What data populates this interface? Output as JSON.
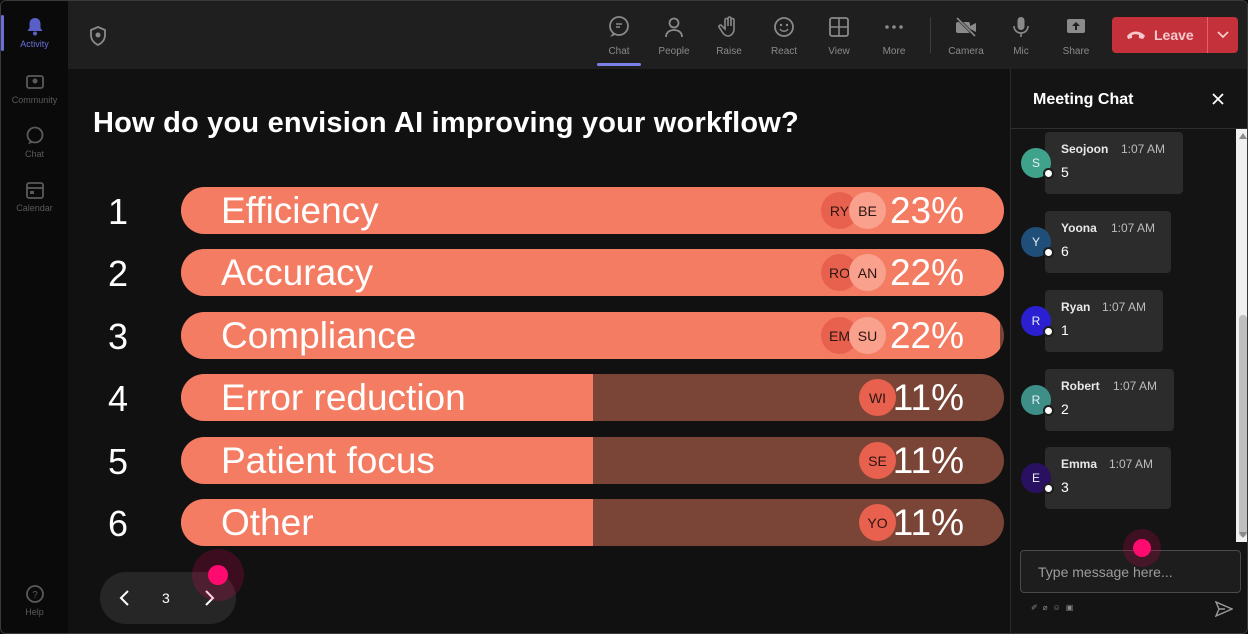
{
  "rail": {
    "items": [
      {
        "label": "Activity",
        "icon": "bell-icon",
        "active": true
      },
      {
        "label": "Community",
        "icon": "community-icon",
        "active": false
      },
      {
        "label": "Chat",
        "icon": "chat-icon",
        "active": false
      },
      {
        "label": "Calendar",
        "icon": "calendar-icon",
        "active": false
      }
    ],
    "help_label": "Help"
  },
  "toolbar": {
    "buttons": [
      {
        "label": "Chat",
        "icon": "chat-icon",
        "active": true
      },
      {
        "label": "People",
        "icon": "people-icon"
      },
      {
        "label": "Raise",
        "icon": "raise-hand-icon"
      },
      {
        "label": "React",
        "icon": "react-icon"
      },
      {
        "label": "View",
        "icon": "view-icon"
      },
      {
        "label": "More",
        "icon": "more-icon"
      },
      {
        "label": "Camera",
        "icon": "camera-off-icon"
      },
      {
        "label": "Mic",
        "icon": "mic-icon"
      },
      {
        "label": "Share",
        "icon": "share-icon"
      }
    ],
    "leave_label": "Leave",
    "leave_color": "#c4313b"
  },
  "poll": {
    "question": "How do you envision AI improving your workflow?",
    "bar_color": "#f47c63",
    "track_color": "#7a4536",
    "options": [
      {
        "num": "1",
        "label": "Efficiency",
        "percent_label": "23%",
        "fill_fraction": 1.0,
        "avatars": [
          "RY",
          "BE"
        ]
      },
      {
        "num": "2",
        "label": "Accuracy",
        "percent_label": "22%",
        "fill_fraction": 1.0,
        "avatars": [
          "RO",
          "AN"
        ]
      },
      {
        "num": "3",
        "label": "Compliance",
        "percent_label": "22%",
        "fill_fraction": 0.995,
        "avatars": [
          "EM",
          "SU"
        ]
      },
      {
        "num": "4",
        "label": "Error reduction",
        "percent_label": "11%",
        "fill_fraction": 0.5,
        "avatars": [
          "WI"
        ]
      },
      {
        "num": "5",
        "label": "Patient focus",
        "percent_label": "11%",
        "fill_fraction": 0.5,
        "avatars": [
          "SE"
        ]
      },
      {
        "num": "6",
        "label": "Other",
        "percent_label": "11%",
        "fill_fraction": 0.5,
        "avatars": [
          "YO"
        ]
      }
    ],
    "page": "3"
  },
  "chat": {
    "title": "Meeting Chat",
    "messages": [
      {
        "initial": "S",
        "name": "Seojoon",
        "time": "1:07 AM",
        "text": "5",
        "avatar_color": "#3fa28a"
      },
      {
        "initial": "Y",
        "name": "Yoona",
        "time": "1:07 AM",
        "text": "6",
        "avatar_color": "#1f4e79"
      },
      {
        "initial": "R",
        "name": "Ryan",
        "time": "1:07 AM",
        "text": "1",
        "avatar_color": "#2a1fd1"
      },
      {
        "initial": "R",
        "name": "Robert",
        "time": "1:07 AM",
        "text": "2",
        "avatar_color": "#3d8f88"
      },
      {
        "initial": "E",
        "name": "Emma",
        "time": "1:07 AM",
        "text": "3",
        "avatar_color": "#2a1060"
      }
    ],
    "input_placeholder": "Type message here..."
  }
}
